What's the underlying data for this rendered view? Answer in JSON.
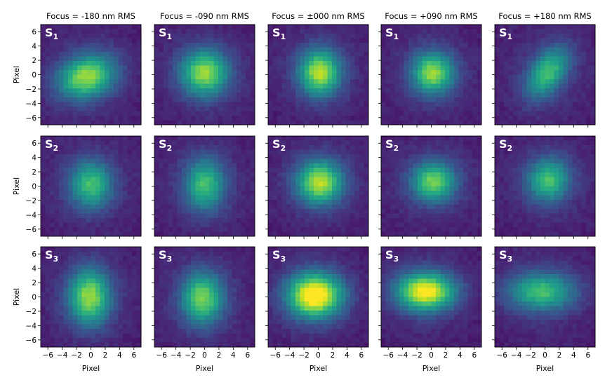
{
  "chart_data": {
    "type": "heatmap",
    "colormap": "viridis",
    "grid": false,
    "column_titles": [
      "Focus = -180 nm RMS",
      "Focus = -090 nm RMS",
      "Focus = ±000 nm RMS",
      "Focus = +090 nm RMS",
      "Focus = +180 nm RMS"
    ],
    "row_labels": [
      {
        "base": "S",
        "sub": "1"
      },
      {
        "base": "S",
        "sub": "2"
      },
      {
        "base": "S",
        "sub": "3"
      }
    ],
    "xlabel": "Pixel",
    "ylabel": "Pixel",
    "xlim": [
      -7,
      7
    ],
    "ylim": [
      -7,
      7
    ],
    "xticks": [
      "−6",
      "−4",
      "−2",
      "0",
      "2",
      "4",
      "6"
    ],
    "yticks": [
      "6",
      "4",
      "2",
      "0",
      "−2",
      "−4",
      "−6"
    ],
    "grid_size": 22,
    "panels": [
      [
        {
          "cx": -0.6,
          "cy": -0.3,
          "sx": 2.8,
          "sy": 2.0,
          "rot": 20,
          "peak": 0.7
        },
        {
          "cx": 0.0,
          "cy": 0.2,
          "sx": 2.3,
          "sy": 2.2,
          "rot": 0,
          "peak": 0.7
        },
        {
          "cx": 0.2,
          "cy": 0.3,
          "sx": 2.0,
          "sy": 2.2,
          "rot": 0,
          "peak": 0.75
        },
        {
          "cx": 0.2,
          "cy": 0.2,
          "sx": 2.0,
          "sy": 2.0,
          "rot": 0,
          "peak": 0.7
        },
        {
          "cx": 0.4,
          "cy": 0.3,
          "sx": 1.6,
          "sy": 2.7,
          "rot": -35,
          "peak": 0.55
        }
      ],
      [
        {
          "cx": 0.0,
          "cy": 0.2,
          "sx": 2.0,
          "sy": 2.3,
          "rot": 0,
          "peak": 0.55
        },
        {
          "cx": 0.0,
          "cy": 0.2,
          "sx": 1.9,
          "sy": 2.5,
          "rot": 0,
          "peak": 0.55
        },
        {
          "cx": 0.2,
          "cy": 0.5,
          "sx": 2.2,
          "sy": 2.1,
          "rot": 0,
          "peak": 0.75
        },
        {
          "cx": 0.3,
          "cy": 0.6,
          "sx": 2.1,
          "sy": 1.9,
          "rot": 0,
          "peak": 0.65
        },
        {
          "cx": 0.5,
          "cy": 0.8,
          "sx": 2.0,
          "sy": 2.1,
          "rot": -25,
          "peak": 0.55
        }
      ],
      [
        {
          "cx": -0.2,
          "cy": 0.0,
          "sx": 2.0,
          "sy": 2.7,
          "rot": 0,
          "peak": 0.7
        },
        {
          "cx": -0.3,
          "cy": -0.2,
          "sx": 2.0,
          "sy": 2.5,
          "rot": 0,
          "peak": 0.65
        },
        {
          "cx": -0.5,
          "cy": 0.2,
          "sx": 2.6,
          "sy": 2.1,
          "rot": 0,
          "peak": 0.98
        },
        {
          "cx": -0.8,
          "cy": 0.7,
          "sx": 2.8,
          "sy": 1.8,
          "rot": 0,
          "peak": 0.88
        },
        {
          "cx": -0.5,
          "cy": 0.7,
          "sx": 3.2,
          "sy": 1.8,
          "rot": 0,
          "peak": 0.55
        }
      ]
    ]
  }
}
